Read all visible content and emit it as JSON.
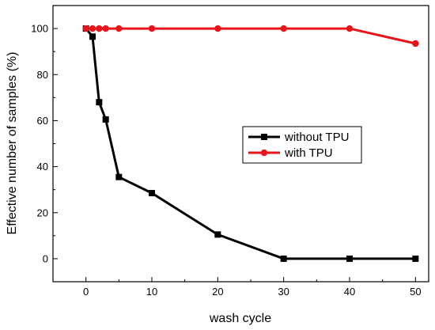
{
  "chart_data": {
    "type": "line",
    "xlabel": "wash cycle",
    "ylabel": "Effective number of samples (%)",
    "xlim": [
      -5,
      52
    ],
    "ylim": [
      -10,
      110
    ],
    "x_ticks": [
      0,
      10,
      20,
      30,
      40,
      50
    ],
    "y_ticks": [
      0,
      20,
      40,
      60,
      80,
      100
    ],
    "grid": false,
    "legend_position": "center-right",
    "series": [
      {
        "name": "without TPU",
        "color": "#000000",
        "marker": "square",
        "x": [
          0,
          1,
          2,
          3,
          5,
          10,
          20,
          30,
          40,
          50
        ],
        "y": [
          100,
          96.5,
          68,
          60.5,
          35.5,
          28.5,
          10.5,
          0,
          0,
          0
        ]
      },
      {
        "name": "with TPU",
        "color": "#e8141b",
        "marker": "circle",
        "x": [
          0,
          1,
          2,
          3,
          5,
          10,
          20,
          30,
          40,
          50
        ],
        "y": [
          100,
          100,
          100,
          100,
          100,
          100,
          100,
          100,
          100,
          93.5
        ]
      }
    ]
  }
}
